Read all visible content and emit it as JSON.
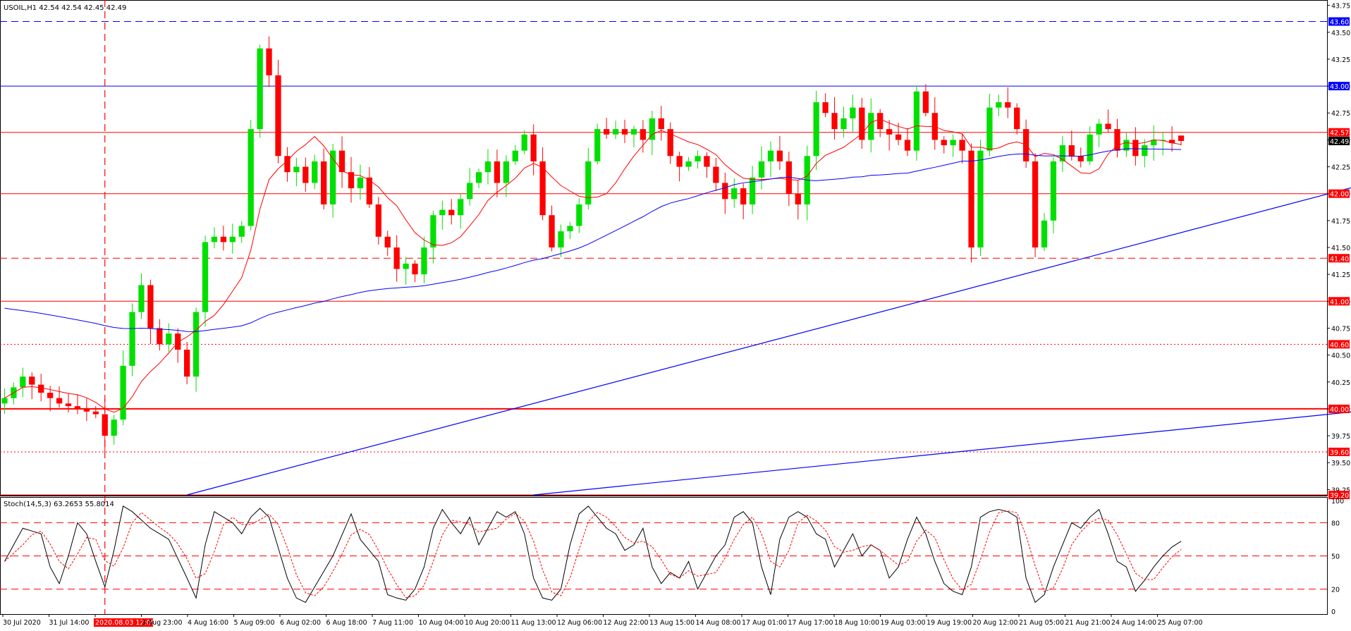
{
  "header": {
    "symbol_line": "USOIL,H1  42.54 42.54 42.45 42.49",
    "stoch_line": "Stoch(14,5,3) 63.2653 55.8014"
  },
  "colors": {
    "bull": "#00e000",
    "bear": "#ff0000",
    "ma_fast": "#ff0000",
    "ma_slow": "#0000ff",
    "trend": "#0000ff",
    "level_red": "#ff0000",
    "level_blue": "#0000ff",
    "axis_text": "#000000",
    "label_text": "#ffffff"
  },
  "axis": {
    "price_ticks": [
      "43.75",
      "43.50",
      "43.25",
      "43.00",
      "42.75",
      "42.50",
      "42.25",
      "42.00",
      "41.75",
      "41.50",
      "41.25",
      "41.00",
      "40.75",
      "40.50",
      "40.25",
      "40.00",
      "39.75",
      "39.50",
      "39.25"
    ],
    "stoch_ticks": [
      "100",
      "80",
      "50",
      "20",
      "0"
    ],
    "time_labels": [
      "30 Jul 2020",
      "31 Jul 14:00",
      "2020.08.03 12:00",
      "3 Aug 23:00",
      "4 Aug 16:00",
      "5 Aug 09:00",
      "6 Aug 02:00",
      "6 Aug 18:00",
      "7 Aug 11:00",
      "10 Aug 04:00",
      "10 Aug 20:00",
      "11 Aug 13:00",
      "12 Aug 06:00",
      "12 Aug 22:00",
      "13 Aug 15:00",
      "14 Aug 08:00",
      "17 Aug 01:00",
      "17 Aug 17:00",
      "18 Aug 10:00",
      "19 Aug 03:00",
      "19 Aug 19:00",
      "20 Aug 12:00",
      "21 Aug 05:00",
      "21 Aug 21:00",
      "24 Aug 14:00",
      "25 Aug 07:00"
    ]
  },
  "levels": [
    {
      "value": 43.6,
      "label": "43.60",
      "color": "#0000ff",
      "style": "dashed"
    },
    {
      "value": 43.0,
      "label": "43.00",
      "color": "#0000ff",
      "style": "solid"
    },
    {
      "value": 42.57,
      "label": "42.57",
      "color": "#ff0000",
      "style": "solid"
    },
    {
      "value": 42.0,
      "label": "42.00",
      "color": "#ff0000",
      "style": "solid"
    },
    {
      "value": 41.4,
      "label": "41.40",
      "color": "#ff0000",
      "style": "dashed"
    },
    {
      "value": 41.0,
      "label": "41.00",
      "color": "#ff0000",
      "style": "solid"
    },
    {
      "value": 40.6,
      "label": "40.60",
      "color": "#ff0000",
      "style": "dotted"
    },
    {
      "value": 40.0,
      "label": "40.00",
      "color": "#ff0000",
      "style": "thick"
    },
    {
      "value": 39.6,
      "label": "39.60",
      "color": "#ff0000",
      "style": "dotted"
    },
    {
      "value": 39.2,
      "label": "39.20",
      "color": "#ff0000",
      "style": "solid"
    }
  ],
  "current_price": {
    "value": 42.49,
    "label": "42.49"
  },
  "chart_data": {
    "type": "candlestick",
    "symbol": "USOIL",
    "timeframe": "H1",
    "ylim": [
      39.2,
      43.8
    ],
    "stoch_ylim": [
      0,
      100
    ],
    "stoch_levels": [
      80,
      50,
      20
    ],
    "vertical_marker": {
      "bar": 11,
      "label": "2020.08.03 12:00"
    },
    "trendlines": [
      {
        "from": [
          20,
          39.2
        ],
        "to": [
          151,
          42.13
        ]
      },
      {
        "from": [
          58,
          39.2
        ],
        "to": [
          151,
          40.0
        ]
      }
    ],
    "close_anchors": [
      [
        0,
        40.1
      ],
      [
        2,
        40.3
      ],
      [
        4,
        40.15
      ],
      [
        6,
        40.05
      ],
      [
        8,
        40.0
      ],
      [
        10,
        39.95
      ],
      [
        11,
        39.75
      ],
      [
        12,
        39.9
      ],
      [
        13,
        40.4
      ],
      [
        14,
        40.9
      ],
      [
        15,
        41.15
      ],
      [
        16,
        40.75
      ],
      [
        17,
        40.6
      ],
      [
        18,
        40.7
      ],
      [
        19,
        40.55
      ],
      [
        20,
        40.3
      ],
      [
        21,
        40.9
      ],
      [
        22,
        41.55
      ],
      [
        23,
        41.6
      ],
      [
        24,
        41.55
      ],
      [
        25,
        41.6
      ],
      [
        26,
        41.7
      ],
      [
        27,
        42.6
      ],
      [
        28,
        43.35
      ],
      [
        29,
        43.1
      ],
      [
        30,
        42.35
      ],
      [
        31,
        42.2
      ],
      [
        32,
        42.25
      ],
      [
        33,
        42.1
      ],
      [
        34,
        42.3
      ],
      [
        35,
        41.9
      ],
      [
        36,
        42.4
      ],
      [
        37,
        42.2
      ],
      [
        38,
        42.05
      ],
      [
        39,
        42.15
      ],
      [
        40,
        41.9
      ],
      [
        41,
        41.6
      ],
      [
        42,
        41.5
      ],
      [
        43,
        41.3
      ],
      [
        44,
        41.35
      ],
      [
        45,
        41.25
      ],
      [
        46,
        41.5
      ],
      [
        47,
        41.8
      ],
      [
        48,
        41.85
      ],
      [
        49,
        41.8
      ],
      [
        50,
        41.95
      ],
      [
        51,
        42.1
      ],
      [
        52,
        42.2
      ],
      [
        53,
        42.3
      ],
      [
        54,
        42.1
      ],
      [
        55,
        42.3
      ],
      [
        56,
        42.4
      ],
      [
        57,
        42.55
      ],
      [
        58,
        42.3
      ],
      [
        59,
        41.8
      ],
      [
        60,
        41.5
      ],
      [
        61,
        41.65
      ],
      [
        62,
        41.7
      ],
      [
        63,
        41.9
      ],
      [
        64,
        42.3
      ],
      [
        65,
        42.6
      ],
      [
        66,
        42.55
      ],
      [
        67,
        42.6
      ],
      [
        68,
        42.55
      ],
      [
        69,
        42.6
      ],
      [
        70,
        42.5
      ],
      [
        71,
        42.7
      ],
      [
        72,
        42.6
      ],
      [
        73,
        42.35
      ],
      [
        74,
        42.25
      ],
      [
        75,
        42.3
      ],
      [
        76,
        42.35
      ],
      [
        77,
        42.25
      ],
      [
        78,
        42.1
      ],
      [
        79,
        41.95
      ],
      [
        80,
        42.05
      ],
      [
        81,
        41.9
      ],
      [
        82,
        42.15
      ],
      [
        83,
        42.3
      ],
      [
        84,
        42.4
      ],
      [
        85,
        42.3
      ],
      [
        86,
        42.0
      ],
      [
        87,
        41.9
      ],
      [
        88,
        42.35
      ],
      [
        89,
        42.85
      ],
      [
        90,
        42.75
      ],
      [
        91,
        42.6
      ],
      [
        92,
        42.7
      ],
      [
        93,
        42.8
      ],
      [
        94,
        42.5
      ],
      [
        95,
        42.75
      ],
      [
        96,
        42.6
      ],
      [
        97,
        42.55
      ],
      [
        98,
        42.5
      ],
      [
        99,
        42.4
      ],
      [
        100,
        42.95
      ],
      [
        101,
        42.75
      ],
      [
        102,
        42.5
      ],
      [
        103,
        42.45
      ],
      [
        104,
        42.5
      ],
      [
        105,
        42.4
      ],
      [
        106,
        41.5
      ],
      [
        107,
        42.4
      ],
      [
        108,
        42.8
      ],
      [
        109,
        42.85
      ],
      [
        110,
        42.8
      ],
      [
        111,
        42.6
      ],
      [
        112,
        42.3
      ],
      [
        113,
        41.5
      ],
      [
        114,
        41.75
      ],
      [
        115,
        42.3
      ],
      [
        116,
        42.45
      ],
      [
        117,
        42.35
      ],
      [
        118,
        42.3
      ],
      [
        119,
        42.55
      ],
      [
        120,
        42.65
      ],
      [
        121,
        42.6
      ],
      [
        122,
        42.4
      ],
      [
        123,
        42.5
      ],
      [
        124,
        42.35
      ],
      [
        125,
        42.45
      ],
      [
        126,
        42.5
      ],
      [
        127,
        42.5
      ],
      [
        128,
        42.47
      ],
      [
        129,
        42.49
      ]
    ],
    "stoch_anchors": [
      [
        0,
        45
      ],
      [
        2,
        75
      ],
      [
        4,
        70
      ],
      [
        5,
        40
      ],
      [
        6,
        25
      ],
      [
        7,
        50
      ],
      [
        8,
        80
      ],
      [
        9,
        70
      ],
      [
        10,
        45
      ],
      [
        11,
        22
      ],
      [
        12,
        55
      ],
      [
        13,
        95
      ],
      [
        14,
        90
      ],
      [
        16,
        75
      ],
      [
        18,
        65
      ],
      [
        20,
        30
      ],
      [
        21,
        12
      ],
      [
        22,
        60
      ],
      [
        23,
        90
      ],
      [
        24,
        85
      ],
      [
        25,
        80
      ],
      [
        26,
        70
      ],
      [
        27,
        85
      ],
      [
        28,
        93
      ],
      [
        29,
        85
      ],
      [
        31,
        30
      ],
      [
        32,
        12
      ],
      [
        33,
        8
      ],
      [
        34,
        22
      ],
      [
        36,
        50
      ],
      [
        38,
        88
      ],
      [
        39,
        65
      ],
      [
        40,
        55
      ],
      [
        41,
        45
      ],
      [
        42,
        15
      ],
      [
        43,
        12
      ],
      [
        44,
        10
      ],
      [
        45,
        20
      ],
      [
        46,
        40
      ],
      [
        47,
        75
      ],
      [
        48,
        92
      ],
      [
        49,
        80
      ],
      [
        50,
        70
      ],
      [
        51,
        85
      ],
      [
        52,
        60
      ],
      [
        53,
        75
      ],
      [
        54,
        90
      ],
      [
        55,
        85
      ],
      [
        56,
        90
      ],
      [
        57,
        70
      ],
      [
        58,
        30
      ],
      [
        59,
        12
      ],
      [
        60,
        10
      ],
      [
        61,
        20
      ],
      [
        62,
        60
      ],
      [
        63,
        88
      ],
      [
        64,
        95
      ],
      [
        65,
        85
      ],
      [
        66,
        75
      ],
      [
        67,
        70
      ],
      [
        68,
        55
      ],
      [
        69,
        60
      ],
      [
        70,
        75
      ],
      [
        71,
        40
      ],
      [
        72,
        25
      ],
      [
        73,
        35
      ],
      [
        74,
        30
      ],
      [
        75,
        45
      ],
      [
        76,
        20
      ],
      [
        77,
        35
      ],
      [
        78,
        50
      ],
      [
        79,
        60
      ],
      [
        80,
        85
      ],
      [
        81,
        90
      ],
      [
        82,
        80
      ],
      [
        83,
        40
      ],
      [
        84,
        15
      ],
      [
        85,
        65
      ],
      [
        86,
        85
      ],
      [
        87,
        90
      ],
      [
        88,
        85
      ],
      [
        89,
        70
      ],
      [
        90,
        65
      ],
      [
        91,
        40
      ],
      [
        92,
        55
      ],
      [
        93,
        70
      ],
      [
        94,
        50
      ],
      [
        95,
        60
      ],
      [
        96,
        55
      ],
      [
        97,
        30
      ],
      [
        98,
        40
      ],
      [
        99,
        65
      ],
      [
        100,
        85
      ],
      [
        101,
        70
      ],
      [
        102,
        45
      ],
      [
        103,
        25
      ],
      [
        104,
        18
      ],
      [
        105,
        15
      ],
      [
        106,
        40
      ],
      [
        107,
        85
      ],
      [
        108,
        90
      ],
      [
        109,
        92
      ],
      [
        110,
        90
      ],
      [
        111,
        85
      ],
      [
        112,
        30
      ],
      [
        113,
        8
      ],
      [
        114,
        15
      ],
      [
        115,
        40
      ],
      [
        116,
        60
      ],
      [
        117,
        80
      ],
      [
        118,
        75
      ],
      [
        119,
        85
      ],
      [
        120,
        92
      ],
      [
        121,
        70
      ],
      [
        122,
        45
      ],
      [
        123,
        40
      ],
      [
        124,
        18
      ],
      [
        125,
        28
      ],
      [
        126,
        40
      ],
      [
        127,
        50
      ],
      [
        128,
        58
      ],
      [
        129,
        63.27
      ]
    ],
    "last_bar": {
      "open": 42.54,
      "high": 42.54,
      "low": 42.45,
      "close": 42.49
    },
    "stoch_last": {
      "main": 63.2653,
      "signal": 55.8014
    }
  }
}
